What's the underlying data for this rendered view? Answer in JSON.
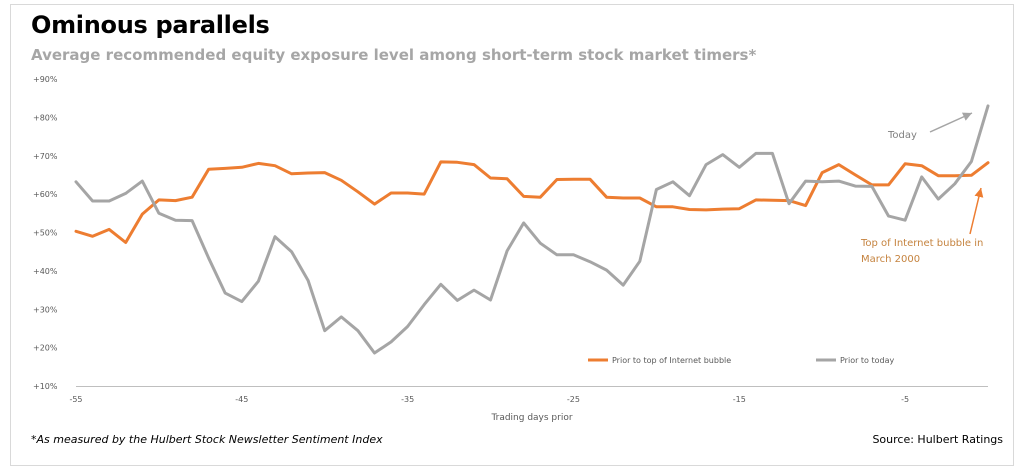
{
  "title": "Ominous parallels",
  "subtitle": "Average recommended equity exposure level among short-term stock market timers*",
  "footnote": "*As measured by the Hulbert Stock Newsletter Sentiment Index",
  "source": "Source: Hulbert Ratings",
  "colors": {
    "bubble": "#ed7d31",
    "today": "#a5a5a5",
    "annotation_top": "#c5833f",
    "annotation_today": "#808080"
  },
  "chart_data": {
    "type": "line",
    "xlabel": "Trading days prior",
    "ylabel": "",
    "xlim": [
      -55,
      0
    ],
    "ylim": [
      10,
      90
    ],
    "grid": false,
    "legend_position": "bottom-right",
    "x_ticks": [
      -55,
      -45,
      -35,
      -25,
      -15,
      -5
    ],
    "x_tick_labels": [
      "-55",
      "-45",
      "-35",
      "-25",
      "-15",
      "-5"
    ],
    "y_ticks": [
      10,
      20,
      30,
      40,
      50,
      60,
      70,
      80,
      90
    ],
    "y_tick_labels": [
      "+10%",
      "+20%",
      "+30%",
      "+40%",
      "+50%",
      "+60%",
      "+70%",
      "+80%",
      "+90%"
    ],
    "x": [
      -55,
      -54,
      -53,
      -52,
      -51,
      -50,
      -49,
      -48,
      -47,
      -46,
      -45,
      -44,
      -43,
      -42,
      -41,
      -40,
      -39,
      -38,
      -37,
      -36,
      -35,
      -34,
      -33,
      -32,
      -31,
      -30,
      -29,
      -28,
      -27,
      -26,
      -25,
      -24,
      -23,
      -22,
      -21,
      -20,
      -19,
      -18,
      -17,
      -16,
      -15,
      -14,
      -13,
      -12,
      -11,
      -10,
      -9,
      -8,
      -7,
      -6,
      -5,
      -4,
      -3,
      -2,
      -1,
      0
    ],
    "series": [
      {
        "name": "Prior to top of Internet bubble",
        "color": "#ed7d31",
        "values": [
          50.3,
          49,
          50.8,
          47.4,
          54.8,
          58.5,
          58.3,
          59.2,
          66.5,
          66.7,
          67,
          68,
          67.4,
          65.3,
          65.5,
          65.6,
          63.6,
          60.6,
          57.4,
          60.3,
          60.3,
          60,
          68.4,
          68.3,
          67.7,
          64.2,
          64,
          59.4,
          59.2,
          63.8,
          63.9,
          63.9,
          59.2,
          59,
          59,
          56.7,
          56.7,
          56,
          55.9,
          56.1,
          56.2,
          58.5,
          58.4,
          58.3,
          57,
          65.6,
          67.7,
          65,
          62.4,
          62.4,
          67.9,
          67.4,
          64.8,
          64.8,
          64.9,
          68.2
        ]
      },
      {
        "name": "Prior to today",
        "color": "#a5a5a5",
        "values": [
          63.2,
          58.2,
          58.2,
          60.2,
          63.4,
          55,
          53.2,
          53.1,
          43.3,
          34.2,
          32,
          37.3,
          48.9,
          45,
          37.5,
          24.4,
          28,
          24.4,
          18.6,
          21.5,
          25.5,
          31.2,
          36.5,
          32.3,
          35,
          32.4,
          45.2,
          52.5,
          47.2,
          44.2,
          44.2,
          42.4,
          40.2,
          36.3,
          42.5,
          61.2,
          63.2,
          59.6,
          67.7,
          70.3,
          67,
          70.6,
          70.6,
          57.5,
          63.4,
          63.2,
          63.4,
          62.1,
          62,
          54.3,
          53.2,
          64.5,
          58.7,
          62.7,
          68.5,
          83
        ]
      }
    ],
    "annotations": [
      {
        "text": "Today",
        "series": "Prior to today",
        "at_x": 0
      },
      {
        "lines": [
          "Top of Internet bubble in",
          "March 2000"
        ],
        "series": "Prior to top of Internet bubble",
        "at_x": 0
      }
    ]
  }
}
